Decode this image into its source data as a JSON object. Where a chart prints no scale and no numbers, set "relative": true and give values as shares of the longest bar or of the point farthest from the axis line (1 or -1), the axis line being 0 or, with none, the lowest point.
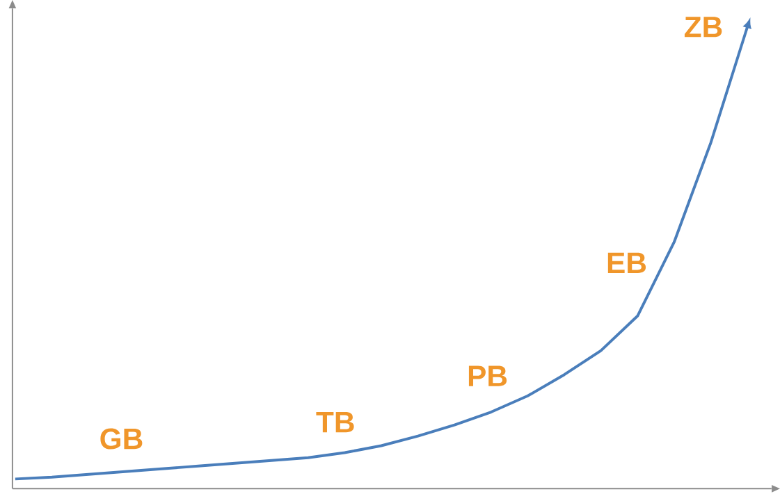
{
  "chart_data": {
    "type": "line",
    "relative": true,
    "color": "#4a7ebb",
    "line_style": "solid",
    "marker": "none",
    "categories": [
      null,
      null,
      null,
      null,
      null,
      null,
      null,
      null,
      null,
      null,
      null,
      null,
      null,
      null,
      null,
      null,
      null,
      null,
      null,
      null,
      null
    ],
    "values": [
      0.021,
      0.025,
      0.031,
      0.037,
      0.043,
      0.049,
      0.055,
      0.061,
      0.067,
      0.078,
      0.093,
      0.114,
      0.138,
      0.166,
      0.201,
      0.247,
      0.299,
      0.374,
      0.534,
      0.749,
      1
    ],
    "annotations": [
      "GB",
      "TB",
      "PB",
      "EB",
      "ZB"
    ]
  }
}
